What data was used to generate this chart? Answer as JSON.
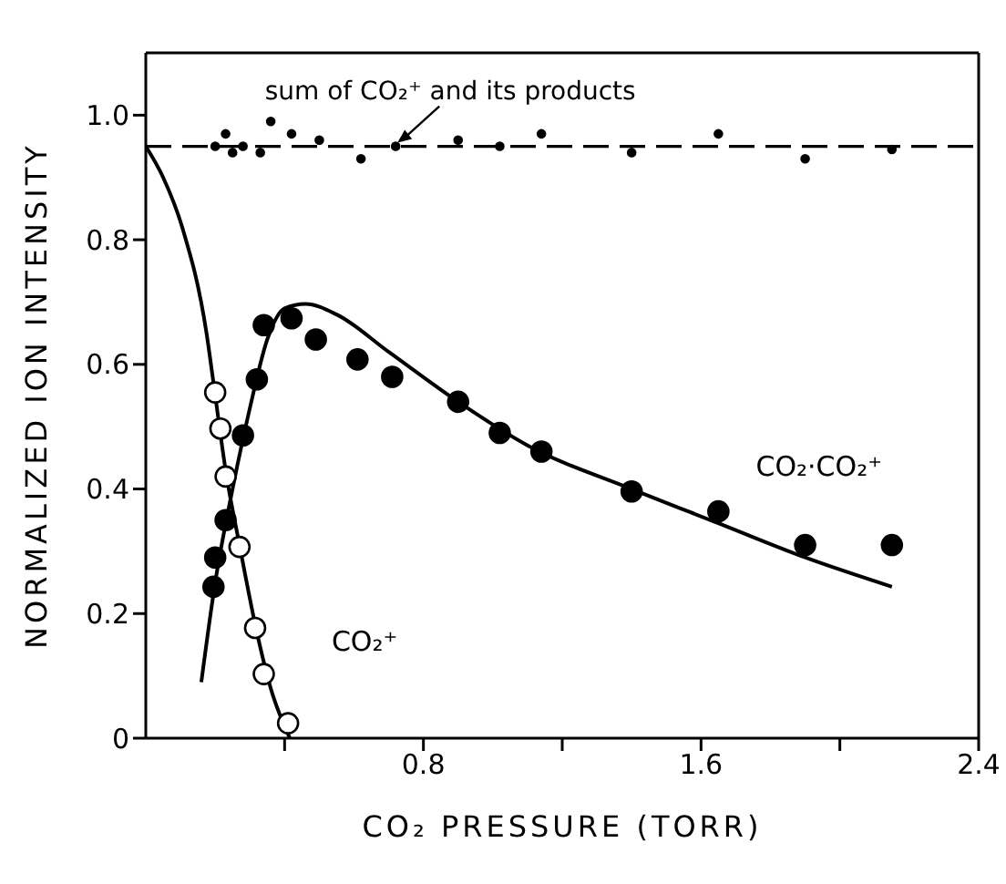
{
  "chart_data": {
    "type": "scatter",
    "xlabel": "CO₂ PRESSURE (TORR)",
    "ylabel": "NORMALIZED ION INTENSITY",
    "xlim": [
      0,
      2.4
    ],
    "ylim": [
      0,
      1.1
    ],
    "xticks": [
      {
        "value": 0.4,
        "label": null
      },
      0.8,
      {
        "value": 1.2,
        "label": null
      },
      1.6,
      {
        "value": 2.0,
        "label": null
      },
      2.4
    ],
    "yticks": [
      0,
      0.2,
      0.4,
      0.6,
      0.8,
      {
        "value": 1,
        "label": "1.0"
      }
    ],
    "marker": "circle",
    "ref_lines": [
      {
        "axis": "y",
        "value": 0.95,
        "line_style": "dashed",
        "color": "#000000"
      }
    ],
    "annotations": [
      {
        "text": "sum of CO₂⁺ and its products",
        "x": 0.72,
        "y": 0.95
      }
    ],
    "series": [
      {
        "name": "CO₂⁺",
        "color": "#ffffff",
        "x": [
          0.2,
          0.215,
          0.23,
          0.27,
          0.315,
          0.34,
          0.41
        ],
        "values": [
          0.555,
          0.497,
          0.42,
          0.307,
          0.177,
          0.103,
          0.024
        ]
      },
      {
        "name": "CO₂·CO₂⁺",
        "color": "#000000",
        "x": [
          0.195,
          0.2,
          0.23,
          0.28,
          0.32,
          0.34,
          0.42,
          0.49,
          0.61,
          0.71,
          0.9,
          1.02,
          1.14,
          1.4,
          1.65,
          1.9,
          2.15
        ],
        "values": [
          0.243,
          0.29,
          0.35,
          0.486,
          0.576,
          0.663,
          0.674,
          0.64,
          0.608,
          0.58,
          0.54,
          0.49,
          0.46,
          0.396,
          0.364,
          0.31,
          0.31
        ]
      },
      {
        "color": "#000000",
        "x": [
          0.2,
          0.23,
          0.25,
          0.28,
          0.33,
          0.36,
          0.42,
          0.5,
          0.62,
          0.72,
          0.9,
          1.02,
          1.14,
          1.4,
          1.65,
          1.9,
          2.15
        ],
        "values": [
          0.95,
          0.97,
          0.94,
          0.95,
          0.94,
          0.99,
          0.97,
          0.96,
          0.93,
          0.95,
          0.96,
          0.95,
          0.97,
          0.94,
          0.97,
          0.93,
          0.945
        ]
      },
      {
        "type": "line",
        "marker": "none",
        "color": "#000000",
        "x": [
          0,
          0.05,
          0.105,
          0.175,
          0.2,
          0.23,
          0.27,
          0.32,
          0.36,
          0.415
        ],
        "values": [
          0.95,
          0.9,
          0.82,
          0.65,
          0.55,
          0.43,
          0.31,
          0.17,
          0.08,
          0
        ]
      },
      {
        "type": "line",
        "marker": "none",
        "color": "#000000",
        "x": [
          0.16,
          0.2,
          0.25,
          0.3,
          0.35,
          0.4,
          0.46,
          0.55,
          0.7,
          0.9,
          1.1,
          1.4,
          1.65,
          1.9,
          2.15
        ],
        "values": [
          0.09,
          0.25,
          0.4,
          0.53,
          0.64,
          0.69,
          0.697,
          0.68,
          0.62,
          0.54,
          0.47,
          0.4,
          0.345,
          0.29,
          0.243
        ]
      }
    ]
  }
}
